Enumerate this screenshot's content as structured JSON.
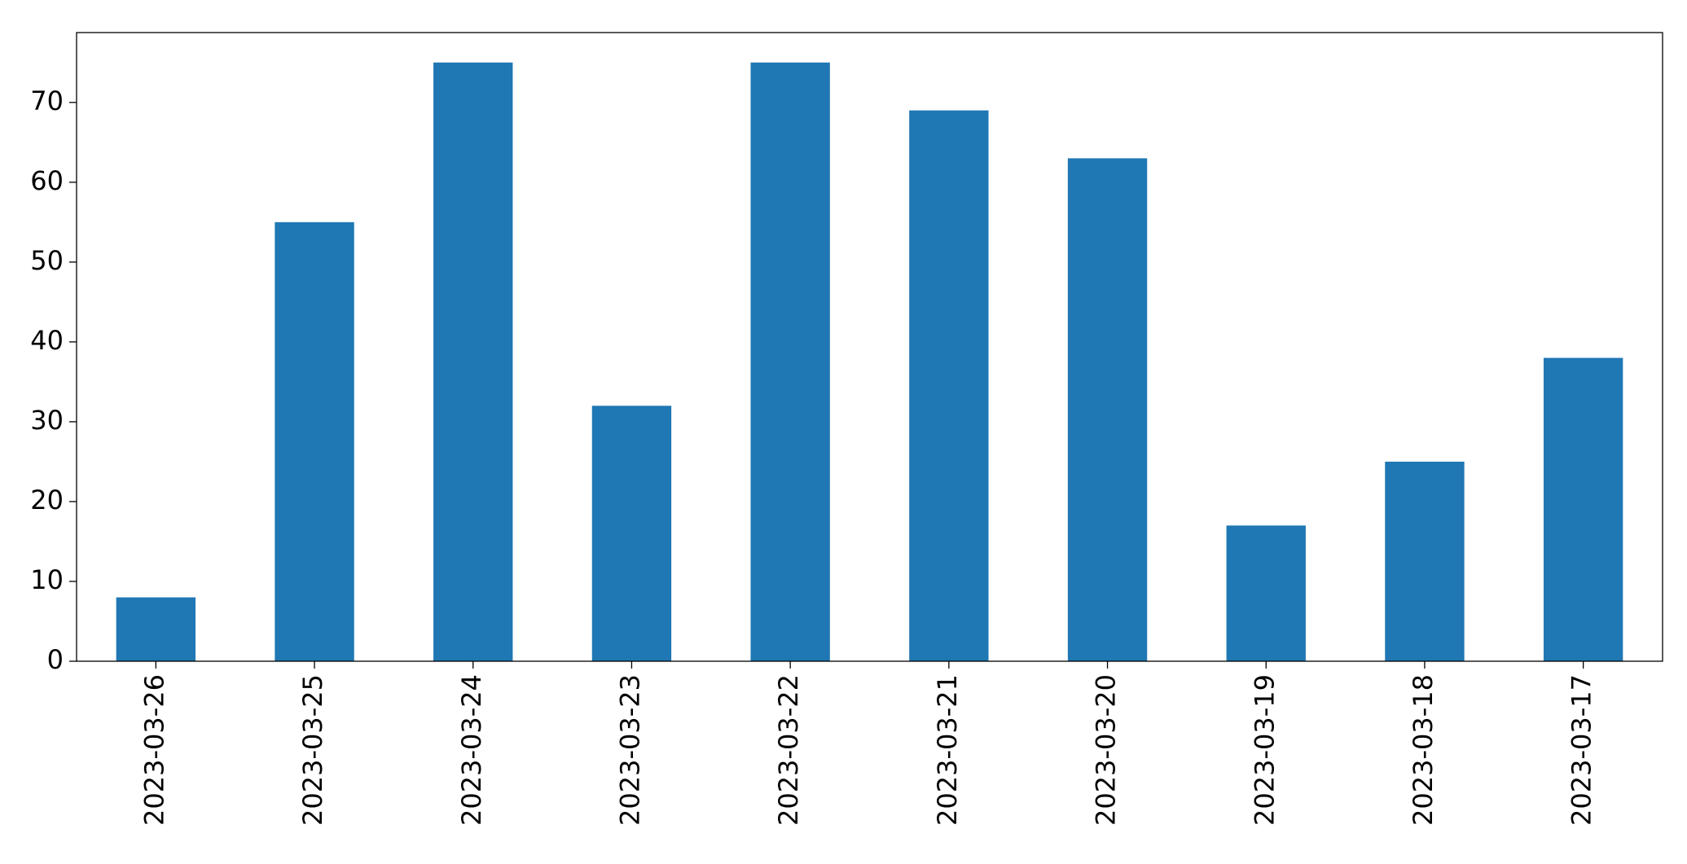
{
  "chart_data": {
    "type": "bar",
    "categories": [
      "2023-03-26",
      "2023-03-25",
      "2023-03-24",
      "2023-03-23",
      "2023-03-22",
      "2023-03-21",
      "2023-03-20",
      "2023-03-19",
      "2023-03-18",
      "2023-03-17"
    ],
    "values": [
      8,
      55,
      75,
      32,
      75,
      69,
      63,
      17,
      25,
      38
    ],
    "color": "#1f77b4",
    "ylim": [
      0,
      78.75
    ],
    "yticks": [
      0,
      10,
      20,
      30,
      40,
      50,
      60,
      70
    ],
    "grid": false
  }
}
